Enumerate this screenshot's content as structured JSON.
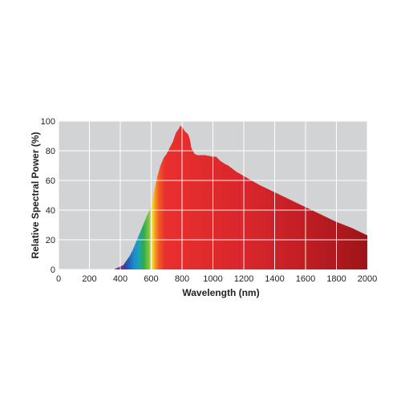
{
  "chart_data": {
    "type": "area",
    "title": "",
    "xlabel": "Wavelength (nm)",
    "ylabel": "Relative Spectral Power (%)",
    "xlim": [
      0,
      2000
    ],
    "ylim": [
      0,
      100
    ],
    "x_ticks": [
      0,
      200,
      400,
      600,
      800,
      1000,
      1200,
      1400,
      1600,
      1800,
      2000
    ],
    "y_ticks": [
      0,
      20,
      40,
      60,
      80,
      100
    ],
    "grid": true,
    "legend": "none",
    "fill": "visible-spectrum gradient (violet to yellow) transitioning to red/dark red above 600 nm",
    "series": [
      {
        "x": [
          360,
          380,
          400,
          420,
          440,
          460,
          480,
          500,
          520,
          540,
          560,
          580,
          600,
          620,
          640,
          660,
          680,
          700,
          720,
          740,
          760,
          780,
          790,
          800,
          820,
          840,
          850,
          860,
          880,
          900,
          950,
          1000,
          1020,
          1050,
          1080,
          1100,
          1150,
          1200,
          1300,
          1400,
          1500,
          1600,
          1700,
          1800,
          1900,
          2000
        ],
        "values": [
          0,
          1,
          2,
          3,
          6,
          9,
          13,
          18,
          23,
          28,
          33,
          38,
          43,
          53,
          63,
          70,
          75,
          78,
          82,
          86,
          92,
          95,
          97,
          96,
          93,
          91,
          88,
          82,
          78,
          77,
          77,
          76,
          76,
          73,
          71,
          70,
          66,
          63,
          57,
          52,
          47,
          42,
          37,
          32,
          28,
          23
        ]
      }
    ]
  }
}
